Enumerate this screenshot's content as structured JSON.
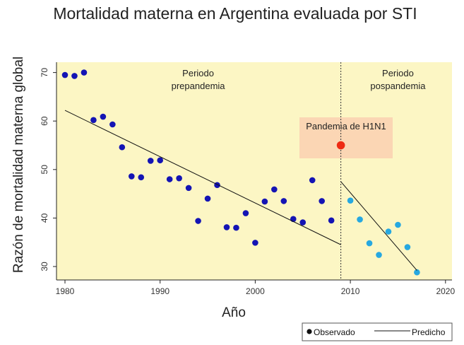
{
  "chart_data": {
    "type": "scatter",
    "title": "Mortalidad materna en Argentina evaluada por STI",
    "xlabel": "Año",
    "ylabel": "Razón de mortalidad materna global",
    "xlim": [
      1980,
      2020
    ],
    "ylim": [
      28,
      72
    ],
    "xticks": [
      1980,
      1990,
      2000,
      2010,
      2020
    ],
    "yticks": [
      30,
      40,
      50,
      60,
      70
    ],
    "background_color": "#fcf6c4",
    "series": [
      {
        "name": "Observado",
        "kind": "points",
        "color": "#1414b4",
        "x": [
          1980,
          1981,
          1982,
          1983,
          1984,
          1985,
          1986,
          1987,
          1988,
          1989,
          1990,
          1991,
          1992,
          1993,
          1994,
          1995,
          1996,
          1997,
          1998,
          1999,
          2000,
          2001,
          2002,
          2003,
          2004,
          2005,
          2006,
          2007,
          2008
        ],
        "y": [
          69.5,
          69.3,
          70.0,
          60.2,
          60.9,
          59.3,
          54.6,
          48.6,
          48.4,
          51.8,
          51.9,
          48.0,
          48.2,
          46.2,
          39.4,
          44.0,
          46.8,
          38.1,
          38.0,
          41.0,
          34.9,
          43.4,
          45.9,
          43.5,
          39.8,
          39.1,
          47.8,
          43.5,
          39.5
        ]
      },
      {
        "name": "",
        "kind": "points",
        "color": "#27a8e0",
        "x": [
          2010,
          2011,
          2012,
          2013,
          2014,
          2015,
          2016,
          2017
        ],
        "y": [
          43.6,
          39.7,
          34.8,
          32.4,
          37.2,
          38.6,
          34.0,
          28.8
        ]
      },
      {
        "name": "Predicho",
        "kind": "line",
        "color": "#111111",
        "x": [
          1980,
          2009
        ],
        "y": [
          62.2,
          34.5
        ]
      },
      {
        "name": "",
        "kind": "line",
        "color": "#111111",
        "x": [
          2009,
          2017
        ],
        "y": [
          47.5,
          29.2
        ]
      }
    ],
    "highlight": {
      "label": "Pandemia de H1N1",
      "x": 2009,
      "y": 55.0,
      "color": "#ee2a12",
      "box_color": "#fbd6b4"
    },
    "vline": {
      "x": 2009,
      "style": "dashed"
    },
    "annotations": [
      {
        "lines": [
          "Periodo",
          "prepandemia"
        ],
        "x": 1994,
        "y": 68.0
      },
      {
        "lines": [
          "Periodo",
          "pospandemia"
        ],
        "x": 2015,
        "y": 68.0
      }
    ],
    "legend": {
      "position": "bottom-right",
      "items": [
        {
          "label": "Observado",
          "symbol": "dot"
        },
        {
          "label": "Predicho",
          "symbol": "line"
        }
      ]
    }
  }
}
